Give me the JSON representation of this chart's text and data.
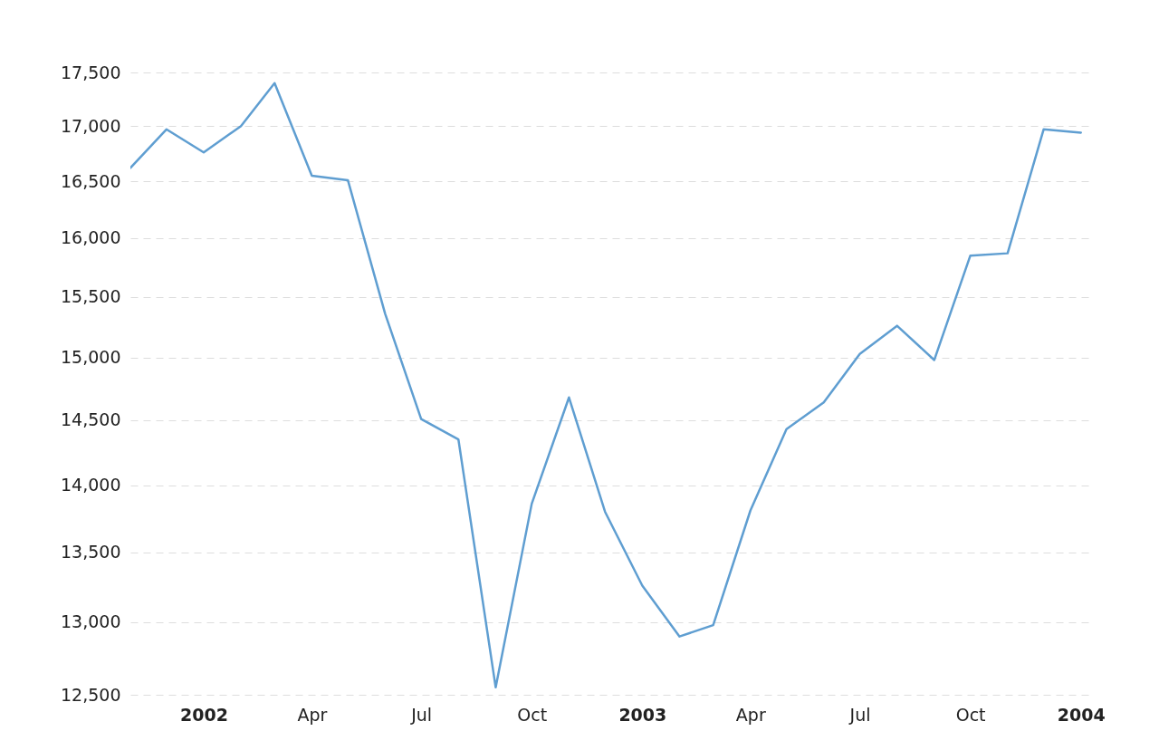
{
  "chart_data": {
    "type": "line",
    "x": [
      "2001-11",
      "2001-12",
      "2002-01",
      "2002-02",
      "2002-03",
      "2002-04",
      "2002-05",
      "2002-06",
      "2002-07",
      "2002-08",
      "2002-09",
      "2002-10",
      "2002-11",
      "2002-12",
      "2003-01",
      "2003-02",
      "2003-03",
      "2003-04",
      "2003-05",
      "2003-06",
      "2003-07",
      "2003-08",
      "2003-09",
      "2003-10",
      "2003-11",
      "2003-12",
      "2004-01"
    ],
    "values": [
      16620,
      16970,
      16760,
      17000,
      17400,
      16550,
      16510,
      15360,
      14510,
      14350,
      12550,
      13860,
      14680,
      13800,
      13260,
      12900,
      12980,
      13810,
      14430,
      14640,
      15030,
      15260,
      14980,
      15850,
      15870,
      16970,
      16940
    ],
    "color": "#5f9ed1",
    "line_style": "solid",
    "xlim": [
      "2001-11-01",
      "2004-01-11"
    ],
    "xticks": [
      {
        "value": "2002-01",
        "label": "2002"
      },
      {
        "value": "2002-04",
        "label": "Apr"
      },
      {
        "value": "2002-07",
        "label": "Jul"
      },
      {
        "value": "2002-10",
        "label": "Oct"
      },
      {
        "value": "2003-01",
        "label": "2003"
      },
      {
        "value": "2003-04",
        "label": "Apr"
      },
      {
        "value": "2003-07",
        "label": "Jul"
      },
      {
        "value": "2003-10",
        "label": "Oct"
      },
      {
        "value": "2004-01",
        "label": "2004"
      }
    ],
    "ylim": [
      12500,
      17500
    ],
    "yticks": [
      {
        "value": 12500,
        "label": "12,500"
      },
      {
        "value": 13000,
        "label": "13,000"
      },
      {
        "value": 13500,
        "label": "13,500"
      },
      {
        "value": 14000,
        "label": "14,000"
      },
      {
        "value": 14500,
        "label": "14,500"
      },
      {
        "value": 15000,
        "label": "15,000"
      },
      {
        "value": 15500,
        "label": "15,500"
      },
      {
        "value": 16000,
        "label": "16,000"
      },
      {
        "value": 16500,
        "label": "16,500"
      },
      {
        "value": 17000,
        "label": "17,000"
      },
      {
        "value": 17500,
        "label": "17,500"
      }
    ],
    "log": true,
    "grid": "y"
  }
}
